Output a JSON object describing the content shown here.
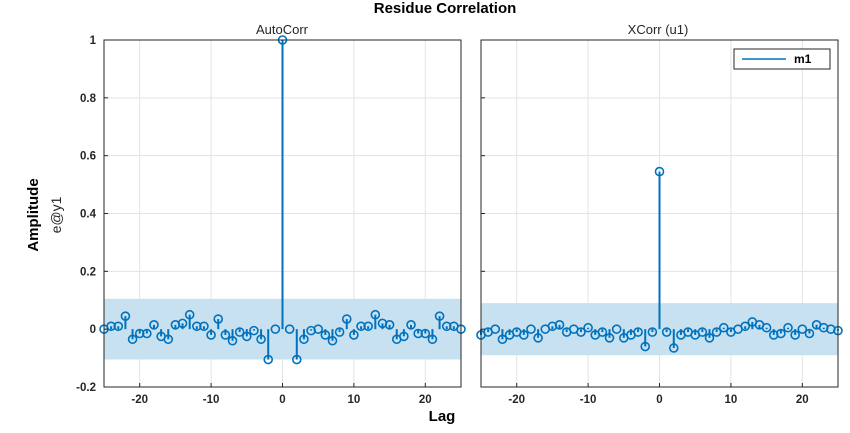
{
  "colors": {
    "stem": "#0072bd",
    "band": "#c7e1f1",
    "grid": "#e3e3e3",
    "axis": "#262626"
  },
  "chart_data": {
    "title": "Residue Correlation",
    "xlabel": "Lag",
    "ylabel": "Amplitude",
    "ylabel_secondary": "e@y1",
    "ylim": [
      -0.2,
      1
    ],
    "yticks": [
      "-0.2",
      "0",
      "0.2",
      "0.4",
      "0.6",
      "0.8",
      "1"
    ],
    "ytick_values": [
      -0.2,
      0,
      0.2,
      0.4,
      0.6,
      0.8,
      1
    ],
    "xlim": [
      -25,
      25
    ],
    "xticks": [
      "-20",
      "-10",
      "0",
      "10",
      "20"
    ],
    "xtick_values": [
      -20,
      -10,
      0,
      10,
      20
    ],
    "grid": true,
    "panels": [
      {
        "type": "stem",
        "title": "AutoCorr",
        "confidence_band": [
          -0.105,
          0.105
        ],
        "series": [
          {
            "lags": [
              -25,
              -24,
              -23,
              -22,
              -21,
              -20,
              -19,
              -18,
              -17,
              -16,
              -15,
              -14,
              -13,
              -12,
              -11,
              -10,
              -9,
              -8,
              -7,
              -6,
              -5,
              -4,
              -3,
              -2,
              -1,
              0,
              1,
              2,
              3,
              4,
              5,
              6,
              7,
              8,
              9,
              10,
              11,
              12,
              13,
              14,
              15,
              16,
              17,
              18,
              19,
              20,
              21,
              22,
              23,
              24,
              25
            ],
            "values": [
              0.0,
              0.01,
              0.01,
              0.045,
              -0.035,
              -0.015,
              -0.015,
              0.015,
              -0.025,
              -0.035,
              0.015,
              0.02,
              0.05,
              0.01,
              0.01,
              -0.02,
              0.035,
              -0.02,
              -0.04,
              -0.01,
              -0.025,
              -0.005,
              -0.035,
              -0.105,
              0.0,
              1.0,
              0.0,
              -0.105,
              -0.035,
              -0.005,
              0.0,
              -0.02,
              -0.04,
              -0.01,
              0.035,
              -0.02,
              0.01,
              0.01,
              0.05,
              0.02,
              0.015,
              -0.035,
              -0.025,
              0.015,
              -0.015,
              -0.015,
              -0.035,
              0.045,
              0.01,
              0.01,
              0.0
            ]
          }
        ]
      },
      {
        "type": "stem",
        "title": "XCorr (u1)",
        "confidence_band": [
          -0.09,
          0.09
        ],
        "legend": {
          "entries": [
            "m1"
          ],
          "placement": "top-right"
        },
        "series": [
          {
            "name": "m1",
            "lags": [
              -25,
              -24,
              -23,
              -22,
              -21,
              -20,
              -19,
              -18,
              -17,
              -16,
              -15,
              -14,
              -13,
              -12,
              -11,
              -10,
              -9,
              -8,
              -7,
              -6,
              -5,
              -4,
              -3,
              -2,
              -1,
              0,
              1,
              2,
              3,
              4,
              5,
              6,
              7,
              8,
              9,
              10,
              11,
              12,
              13,
              14,
              15,
              16,
              17,
              18,
              19,
              20,
              21,
              22,
              23,
              24,
              25
            ],
            "values": [
              -0.02,
              -0.01,
              0.0,
              -0.035,
              -0.02,
              -0.01,
              -0.02,
              0.0,
              -0.03,
              0.0,
              0.01,
              0.015,
              -0.01,
              0.0,
              -0.01,
              0.005,
              -0.02,
              -0.01,
              -0.03,
              0.0,
              -0.03,
              -0.02,
              -0.01,
              -0.06,
              -0.01,
              0.545,
              -0.01,
              -0.065,
              -0.02,
              -0.01,
              -0.02,
              -0.01,
              -0.03,
              -0.01,
              0.005,
              -0.01,
              0.0,
              0.01,
              0.025,
              0.015,
              0.005,
              -0.02,
              -0.015,
              0.005,
              -0.02,
              0.0,
              -0.015,
              0.015,
              0.005,
              0.0,
              -0.005
            ]
          }
        ]
      }
    ]
  }
}
